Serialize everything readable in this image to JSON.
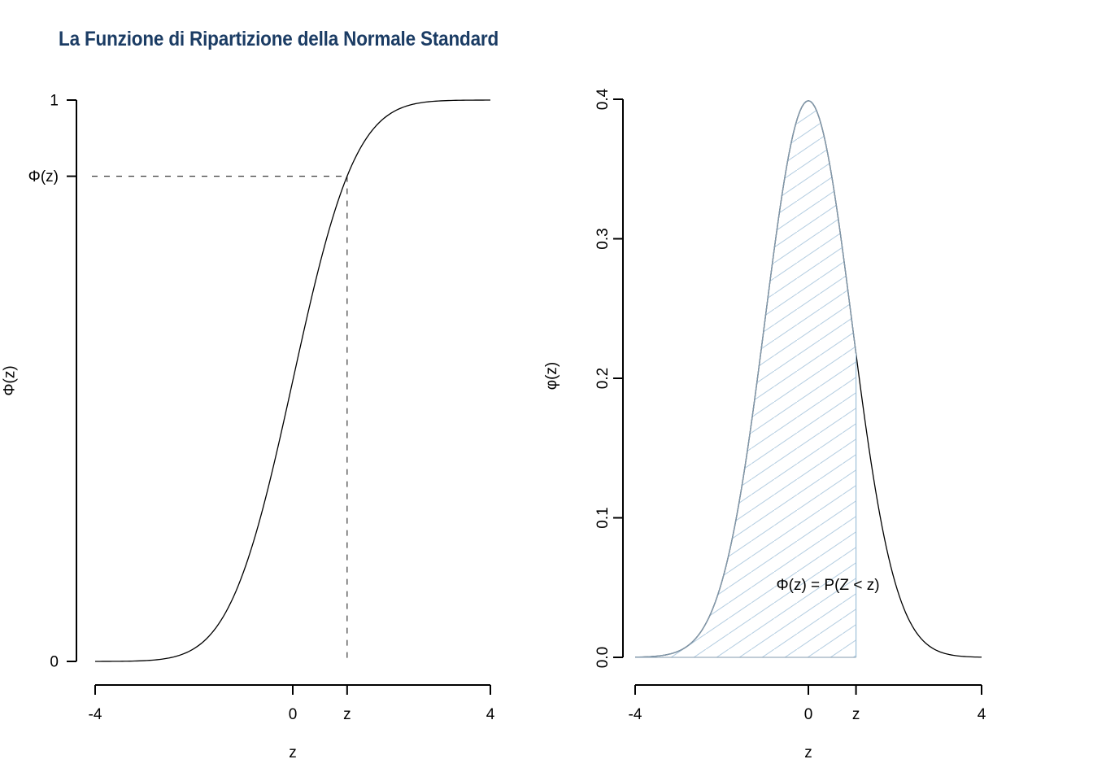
{
  "title": {
    "text": "La Funzione di Ripartizione della Normale Standard",
    "color": "#1b3c64"
  },
  "chart_data": [
    {
      "type": "line",
      "id": "cdf",
      "title": "",
      "xlabel": "z",
      "ylabel": "Φ(z)",
      "xlim": [
        -4,
        4
      ],
      "ylim": [
        0,
        1
      ],
      "grid": false,
      "legend": "none",
      "curve": {
        "name": "standard-normal-cdf",
        "mean": 0,
        "sd": 1,
        "color": "#000000"
      },
      "z_marker": {
        "z": 1.1,
        "phi_z": 0.8643,
        "guide_style": "dashed",
        "guide_color": "#3c3c3c"
      },
      "x_ticks": [
        {
          "value": -4,
          "label": "-4"
        },
        {
          "value": 0,
          "label": "0"
        },
        {
          "value": 1.1,
          "label": "z"
        },
        {
          "value": 4,
          "label": "4"
        }
      ],
      "y_ticks": [
        {
          "value": 0,
          "label": "0"
        },
        {
          "value": 0.8643,
          "label": "Φ(z)"
        },
        {
          "value": 1,
          "label": "1"
        }
      ],
      "points": {
        "x": [
          -4,
          -3.5,
          -3,
          -2.5,
          -2,
          -1.5,
          -1,
          -0.5,
          0,
          0.5,
          1,
          1.5,
          2,
          2.5,
          3,
          3.5,
          4
        ],
        "y": [
          3e-05,
          0.00023,
          0.00135,
          0.00621,
          0.02275,
          0.06681,
          0.15866,
          0.30854,
          0.5,
          0.69146,
          0.84134,
          0.93319,
          0.97725,
          0.99379,
          0.99865,
          0.99977,
          0.99997
        ]
      }
    },
    {
      "type": "area",
      "id": "pdf",
      "title": "",
      "xlabel": "z",
      "ylabel": "φ(z)",
      "xlim": [
        -4,
        4
      ],
      "ylim": [
        0,
        0.4
      ],
      "grid": false,
      "legend": "none",
      "curve": {
        "name": "standard-normal-pdf",
        "mean": 0,
        "sd": 1,
        "peak": 0.3989,
        "color": "#000000"
      },
      "shaded_region": {
        "from": -4,
        "to": 1.1,
        "area": 0.8643,
        "label": "Φ(z) = P(Z < z)",
        "hatch_color": "#b7cfe2",
        "hatch_angle_deg": 34,
        "border_color": "#8299ac",
        "edge_color": "#9fc0d8"
      },
      "x_ticks": [
        {
          "value": -4,
          "label": "-4"
        },
        {
          "value": 0,
          "label": "0"
        },
        {
          "value": 1.1,
          "label": "z"
        },
        {
          "value": 4,
          "label": "4"
        }
      ],
      "y_ticks": [
        {
          "value": 0,
          "label": "0.0"
        },
        {
          "value": 0.1,
          "label": "0.1"
        },
        {
          "value": 0.2,
          "label": "0.2"
        },
        {
          "value": 0.3,
          "label": "0.3"
        },
        {
          "value": 0.4,
          "label": "0.4"
        }
      ],
      "points": {
        "x": [
          -4,
          -3.5,
          -3,
          -2.5,
          -2,
          -1.5,
          -1,
          -0.5,
          0,
          0.5,
          1,
          1.5,
          2,
          2.5,
          3,
          3.5,
          4
        ],
        "y": [
          0.00013,
          0.00087,
          0.00443,
          0.01753,
          0.05399,
          0.12952,
          0.24197,
          0.35207,
          0.39894,
          0.35207,
          0.24197,
          0.12952,
          0.05399,
          0.01753,
          0.00443,
          0.00087,
          0.00013
        ]
      }
    }
  ]
}
